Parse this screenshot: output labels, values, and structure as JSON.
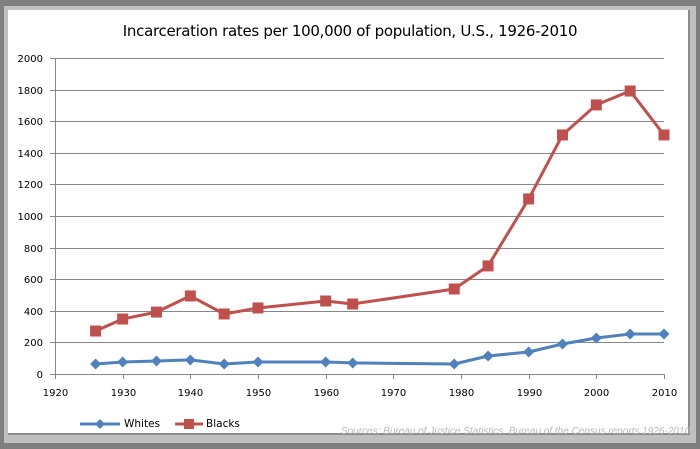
{
  "chart_data": {
    "type": "line",
    "title": "Incarceration rates per 100,000 of population, U.S., 1926-2010",
    "xlabel": "",
    "ylabel": "",
    "xlim": [
      1920,
      2010
    ],
    "ylim": [
      0,
      2000
    ],
    "x_ticks": [
      1920,
      1930,
      1940,
      1950,
      1960,
      1970,
      1980,
      1990,
      2000,
      2010
    ],
    "y_ticks": [
      0,
      200,
      400,
      600,
      800,
      1000,
      1200,
      1400,
      1600,
      1800,
      2000
    ],
    "grid": "horizontal",
    "legend_position": "bottom-left",
    "series": [
      {
        "name": "Whites",
        "color": "#4f81bd",
        "marker": "diamond",
        "x": [
          1926,
          1930,
          1935,
          1940,
          1945,
          1950,
          1960,
          1964,
          1979,
          1984,
          1990,
          1995,
          2000,
          2005,
          2010
        ],
        "values": [
          63,
          76,
          82,
          89,
          63,
          76,
          76,
          70,
          63,
          114,
          139,
          190,
          228,
          253,
          253
        ]
      },
      {
        "name": "Blacks",
        "color": "#c0504d",
        "marker": "square",
        "x": [
          1926,
          1930,
          1935,
          1940,
          1945,
          1950,
          1960,
          1964,
          1979,
          1984,
          1990,
          1995,
          2000,
          2005,
          2010
        ],
        "values": [
          272,
          348,
          392,
          494,
          380,
          418,
          462,
          443,
          538,
          684,
          1108,
          1513,
          1703,
          1791,
          1513
        ]
      }
    ],
    "source": "Sources: Bureau of Justice Statistics. Bureau of the Census reports 1926-2010"
  }
}
